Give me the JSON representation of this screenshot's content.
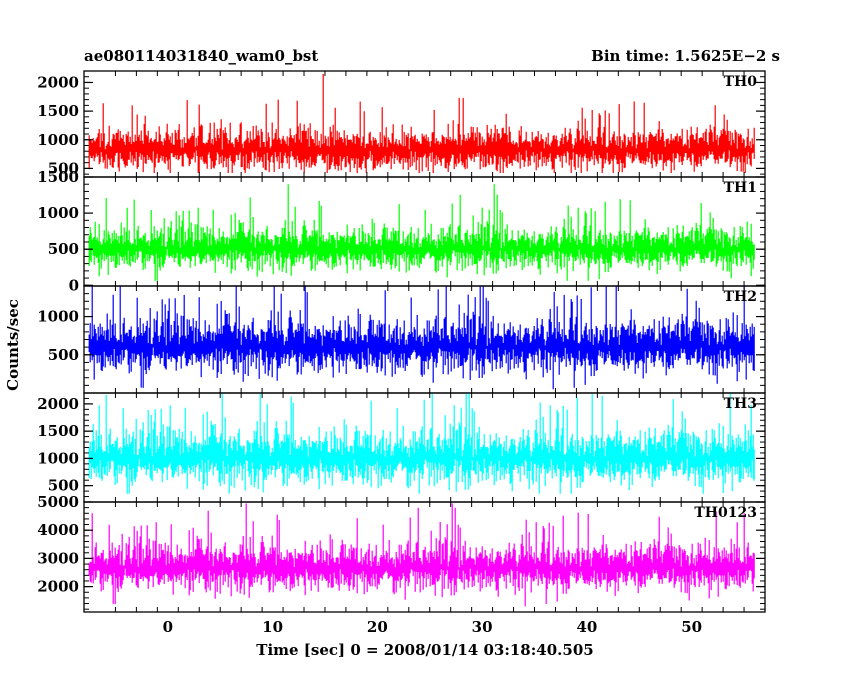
{
  "header": {
    "title": "ae080114031840_wam0_bst",
    "bin_time": "Bin time: 1.5625E−2 s"
  },
  "chart_data": {
    "type": "line",
    "xlabel": "Time [sec] 0 = 2008/01/14 03:18:40.505",
    "ylabel": "Counts/sec",
    "xlim": [
      -8,
      57
    ],
    "x_ticks": [
      0,
      10,
      20,
      30,
      40,
      50
    ],
    "x_range": [
      -7.5,
      56
    ],
    "bin_time_s": 0.015625,
    "grid": false,
    "panels": [
      {
        "name": "TH0",
        "color": "#ff0000",
        "ylim": [
          350,
          2200
        ],
        "yticks": [
          2000,
          1500,
          1000,
          500
        ],
        "top_tick_label": "2000",
        "mean": 820,
        "noise_range": [
          420,
          1750
        ],
        "spike_max": 2150
      },
      {
        "name": "TH1",
        "color": "#00ff00",
        "ylim": [
          -10,
          1500
        ],
        "yticks": [
          1500,
          1000,
          500,
          0
        ],
        "top_tick_label": "1500",
        "mean": 500,
        "noise_range": [
          60,
          1150
        ],
        "spike_max": 1400
      },
      {
        "name": "TH2",
        "color": "#0000ff",
        "ylim": [
          0,
          1400
        ],
        "yticks": [
          1000,
          500
        ],
        "top_tick_label": "",
        "mean": 600,
        "noise_range": [
          50,
          1350
        ],
        "spike_max": 1400
      },
      {
        "name": "TH3",
        "color": "#00ffff",
        "ylim": [
          200,
          2200
        ],
        "yticks": [
          2000,
          1500,
          1000,
          500
        ],
        "top_tick_label": "",
        "mean": 1000,
        "noise_range": [
          350,
          2200
        ],
        "spike_max": 2200
      },
      {
        "name": "TH0123",
        "color": "#ff00ff",
        "ylim": [
          1100,
          5000
        ],
        "yticks": [
          5000,
          4000,
          3000,
          2000
        ],
        "top_tick_label": "5000",
        "mean": 2650,
        "noise_range": [
          1300,
          4400
        ],
        "spike_max": 4950
      }
    ]
  }
}
